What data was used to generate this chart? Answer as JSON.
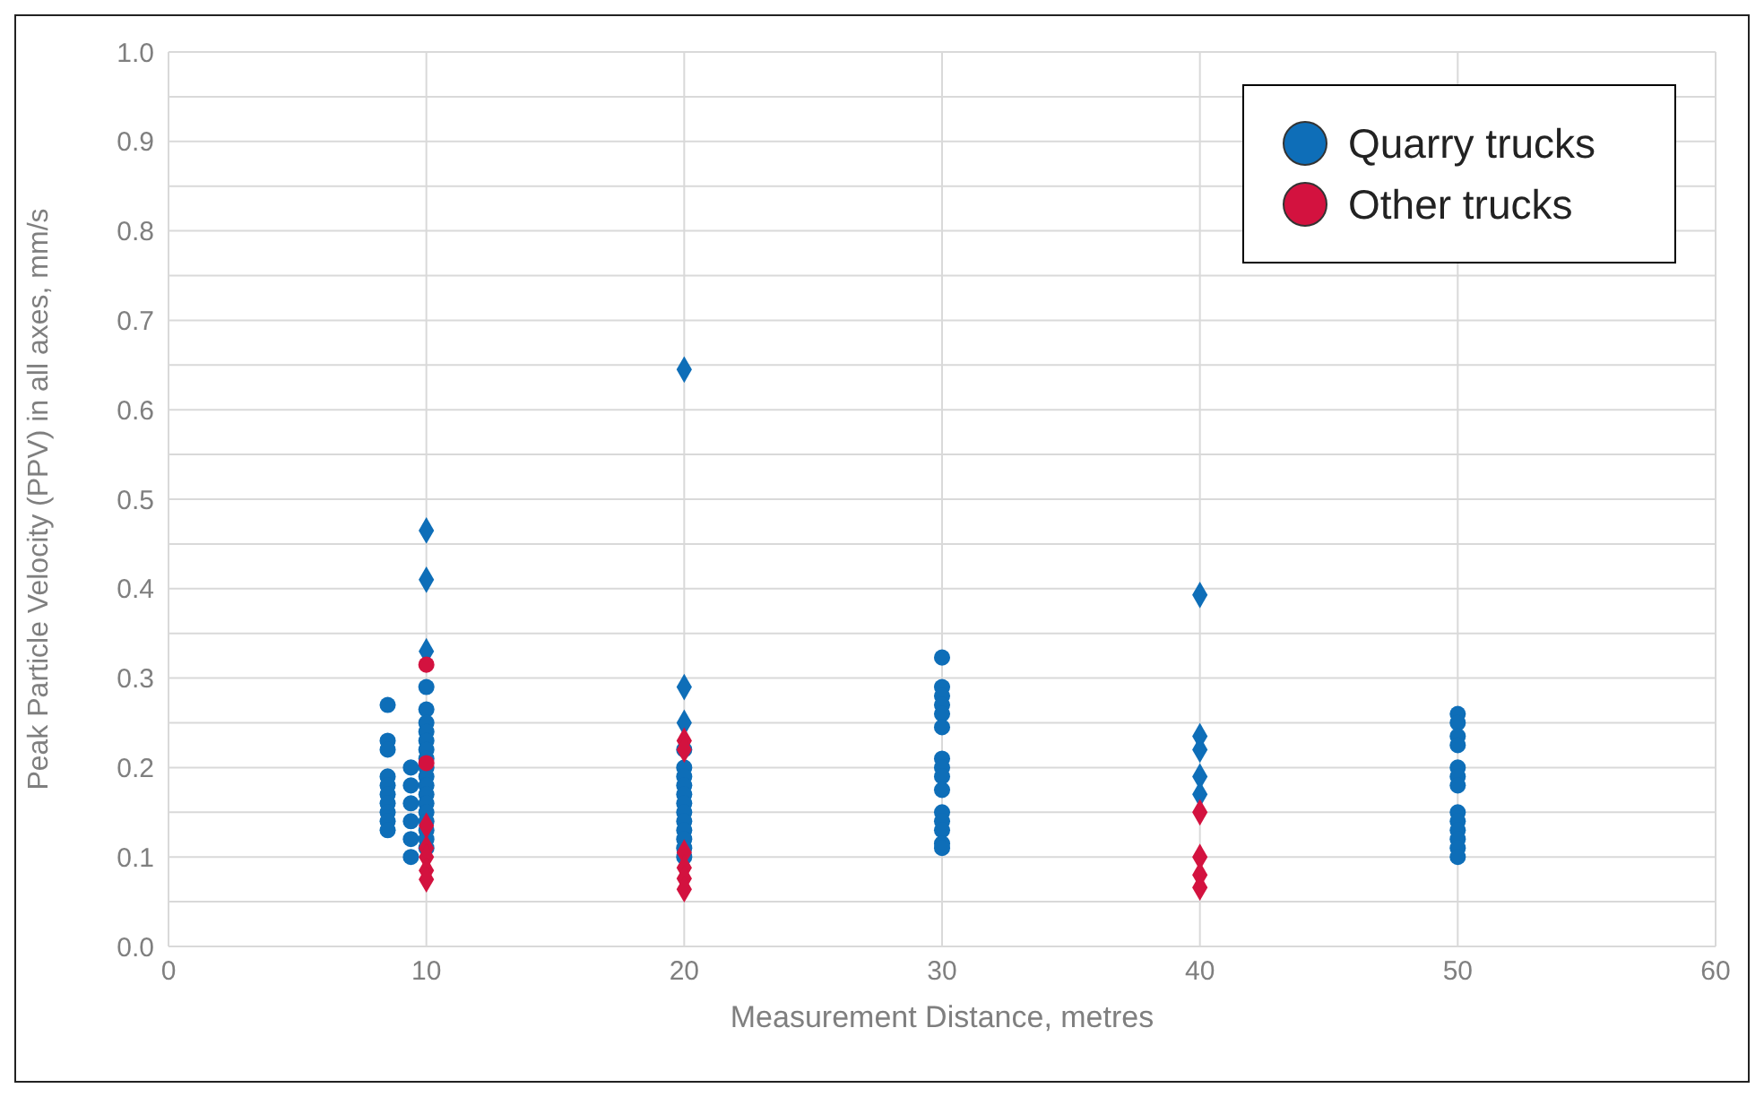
{
  "chart_data": {
    "type": "scatter",
    "xlabel": "Measurement Distance, metres",
    "ylabel": "Peak Particle Velocity (PPV) in all axes, mm/s",
    "xlim": [
      0,
      60
    ],
    "xticks": [
      0,
      10,
      20,
      30,
      40,
      50,
      60
    ],
    "ylim": [
      0,
      1
    ],
    "yticks": [
      {
        "value": 0,
        "label": "0.0"
      },
      {
        "value": 0.05,
        "label": null
      },
      0.1,
      {
        "value": 0.15,
        "label": null
      },
      0.2,
      {
        "value": 0.25,
        "label": null
      },
      0.3,
      {
        "value": 0.35,
        "label": null
      },
      0.4,
      {
        "value": 0.45,
        "label": null
      },
      0.5,
      {
        "value": 0.55,
        "label": null
      },
      0.6,
      {
        "value": 0.65,
        "label": null
      },
      0.7,
      {
        "value": 0.75,
        "label": null
      },
      0.8,
      {
        "value": 0.85,
        "label": null
      },
      0.9,
      {
        "value": 0.95,
        "label": null
      },
      {
        "value": 1,
        "label": "1.0"
      }
    ],
    "grid": true,
    "legend": "top right",
    "series": [
      {
        "name": "Quarry trucks",
        "color": "#0e6eb8",
        "marker": "circle",
        "x": [
          8.5,
          8.5,
          8.5,
          8.5,
          8.5,
          8.5,
          8.5,
          8.5,
          8.5,
          8.5,
          9.4,
          9.4,
          9.4,
          9.4,
          9.4,
          9.4,
          10,
          10,
          10,
          10,
          10,
          10,
          10,
          10,
          10,
          10,
          10,
          10,
          10,
          10,
          10,
          10,
          10,
          20,
          20,
          20,
          20,
          20,
          20,
          20,
          20,
          20,
          20,
          20,
          20,
          30,
          30,
          30,
          30,
          30,
          30,
          30,
          30,
          30,
          30,
          30,
          30,
          30,
          30,
          30,
          50,
          50,
          50,
          50,
          50,
          50,
          50,
          50,
          50,
          50,
          50,
          50,
          50
        ],
        "values": [
          0.27,
          0.23,
          0.22,
          0.19,
          0.18,
          0.17,
          0.16,
          0.15,
          0.14,
          0.13,
          0.2,
          0.18,
          0.16,
          0.14,
          0.12,
          0.1,
          0.29,
          0.265,
          0.25,
          0.24,
          0.23,
          0.22,
          0.21,
          0.2,
          0.19,
          0.18,
          0.17,
          0.16,
          0.15,
          0.14,
          0.13,
          0.12,
          0.11,
          0.22,
          0.2,
          0.19,
          0.18,
          0.17,
          0.16,
          0.15,
          0.14,
          0.13,
          0.12,
          0.11,
          0.1,
          0.323,
          0.29,
          0.28,
          0.27,
          0.26,
          0.245,
          0.21,
          0.2,
          0.19,
          0.175,
          0.15,
          0.14,
          0.13,
          0.115,
          0.11,
          0.26,
          0.25,
          0.235,
          0.225,
          0.2,
          0.19,
          0.18,
          0.15,
          0.14,
          0.13,
          0.12,
          0.11,
          0.1
        ]
      },
      {
        "color": "#0e6eb8",
        "marker": "diamond",
        "x": [
          10,
          10,
          10,
          20,
          20,
          20,
          40,
          40,
          40,
          40,
          40
        ],
        "values": [
          0.465,
          0.41,
          0.33,
          0.645,
          0.29,
          0.25,
          0.393,
          0.235,
          0.22,
          0.19,
          0.17
        ]
      },
      {
        "name": "Other trucks",
        "color": "#d3123f",
        "marker": "circle",
        "x": [
          10,
          10
        ],
        "values": [
          0.315,
          0.205
        ]
      },
      {
        "color": "#d3123f",
        "marker": "diamond",
        "x": [
          10,
          10,
          10,
          10,
          10,
          20,
          20,
          20,
          20,
          20,
          20,
          40,
          40,
          40,
          40
        ],
        "values": [
          0.135,
          0.11,
          0.1,
          0.085,
          0.075,
          0.23,
          0.22,
          0.105,
          0.088,
          0.076,
          0.064,
          0.15,
          0.1,
          0.08,
          0.066
        ]
      }
    ]
  }
}
